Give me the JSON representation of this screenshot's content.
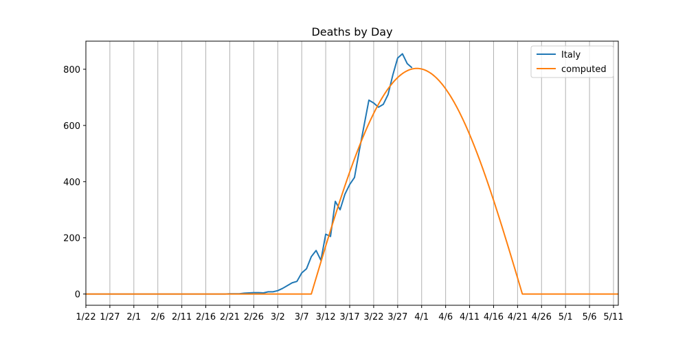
{
  "chart_data": {
    "type": "line",
    "title": "Deaths by Day",
    "xlabel": "",
    "ylabel": "",
    "x_start": "1/22",
    "x_end": "5/12",
    "xlim": [
      "1/22",
      "5/12"
    ],
    "ylim": [
      -40,
      900
    ],
    "grid": "vertical",
    "legend_position": "top-right",
    "x_ticks": [
      "1/22",
      "1/27",
      "2/1",
      "2/6",
      "2/11",
      "2/16",
      "2/21",
      "2/26",
      "3/2",
      "3/7",
      "3/12",
      "3/17",
      "3/22",
      "3/27",
      "4/1",
      "4/6",
      "4/11",
      "4/16",
      "4/21",
      "4/26",
      "5/1",
      "5/6",
      "5/11"
    ],
    "y_ticks": [
      0,
      200,
      400,
      600,
      800
    ],
    "series": [
      {
        "name": "Italy",
        "color": "#1f77b4",
        "points": [
          [
            "1/22",
            0
          ],
          [
            "1/23",
            0
          ],
          [
            "1/24",
            0
          ],
          [
            "1/25",
            0
          ],
          [
            "1/26",
            0
          ],
          [
            "1/27",
            0
          ],
          [
            "1/28",
            0
          ],
          [
            "1/29",
            0
          ],
          [
            "1/30",
            0
          ],
          [
            "1/31",
            0
          ],
          [
            "2/1",
            0
          ],
          [
            "2/2",
            0
          ],
          [
            "2/3",
            0
          ],
          [
            "2/4",
            0
          ],
          [
            "2/5",
            0
          ],
          [
            "2/6",
            0
          ],
          [
            "2/7",
            0
          ],
          [
            "2/8",
            0
          ],
          [
            "2/9",
            0
          ],
          [
            "2/10",
            0
          ],
          [
            "2/11",
            0
          ],
          [
            "2/12",
            0
          ],
          [
            "2/13",
            0
          ],
          [
            "2/14",
            0
          ],
          [
            "2/15",
            0
          ],
          [
            "2/16",
            0
          ],
          [
            "2/17",
            0
          ],
          [
            "2/18",
            0
          ],
          [
            "2/19",
            0
          ],
          [
            "2/20",
            0
          ],
          [
            "2/21",
            1
          ],
          [
            "2/22",
            1
          ],
          [
            "2/23",
            1
          ],
          [
            "2/24",
            3
          ],
          [
            "2/25",
            4
          ],
          [
            "2/26",
            5
          ],
          [
            "2/27",
            5
          ],
          [
            "2/28",
            4
          ],
          [
            "2/29",
            8
          ],
          [
            "3/1",
            8
          ],
          [
            "3/2",
            12
          ],
          [
            "3/3",
            20
          ],
          [
            "3/4",
            30
          ],
          [
            "3/5",
            40
          ],
          [
            "3/6",
            45
          ],
          [
            "3/7",
            75
          ],
          [
            "3/8",
            90
          ],
          [
            "3/9",
            133
          ],
          [
            "3/10",
            155
          ],
          [
            "3/11",
            120
          ],
          [
            "3/12",
            213
          ],
          [
            "3/13",
            205
          ],
          [
            "3/14",
            330
          ],
          [
            "3/15",
            300
          ],
          [
            "3/16",
            355
          ],
          [
            "3/17",
            390
          ],
          [
            "3/18",
            415
          ],
          [
            "3/19",
            510
          ],
          [
            "3/20",
            600
          ],
          [
            "3/21",
            690
          ],
          [
            "3/22",
            680
          ],
          [
            "3/23",
            665
          ],
          [
            "3/24",
            675
          ],
          [
            "3/25",
            710
          ],
          [
            "3/26",
            780
          ],
          [
            "3/27",
            840
          ],
          [
            "3/28",
            855
          ],
          [
            "3/29",
            820
          ],
          [
            "3/30",
            805
          ]
        ]
      },
      {
        "name": "computed",
        "color": "#ff7f0e",
        "model": {
          "form": "sine_hump",
          "start": "3/9",
          "peak": "3/31",
          "end": "4/22",
          "amplitude": 803
        },
        "points": [
          [
            "1/22",
            0
          ],
          [
            "3/9",
            0
          ],
          [
            "3/12",
            127
          ],
          [
            "3/14",
            235
          ],
          [
            "3/17",
            400
          ],
          [
            "3/22",
            630
          ],
          [
            "3/27",
            764
          ],
          [
            "3/31",
            803
          ],
          [
            "4/1",
            799
          ],
          [
            "4/6",
            704
          ],
          [
            "4/11",
            542
          ],
          [
            "4/16",
            330
          ],
          [
            "4/21",
            52
          ],
          [
            "4/22",
            0
          ],
          [
            "5/12",
            0
          ]
        ]
      }
    ]
  }
}
